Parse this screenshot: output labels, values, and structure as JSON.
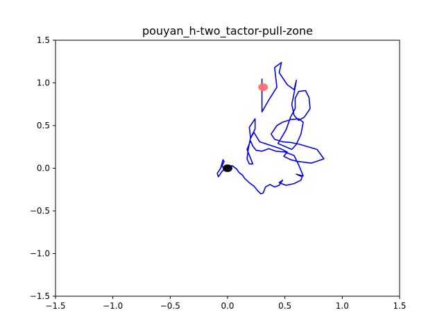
{
  "chart_data": {
    "type": "line",
    "title": "pouyan_h-two_tactor-pull-zone",
    "xlabel": "",
    "ylabel": "",
    "xlim": [
      -1.5,
      1.5
    ],
    "ylim": [
      -1.5,
      1.5
    ],
    "x_ticks": [
      -1.5,
      -1.0,
      -0.5,
      0.0,
      0.5,
      1.0,
      1.5
    ],
    "x_tick_labels": [
      "−1.5",
      "−1.0",
      "−0.5",
      "0.0",
      "0.5",
      "1.0",
      "1.5"
    ],
    "y_ticks": [
      1.5,
      1.0,
      0.5,
      0.0,
      -0.5,
      -1.0,
      -1.5
    ],
    "y_tick_labels": [
      "1.5",
      "1.0",
      "0.5",
      "0.0",
      "−0.5",
      "−1.0",
      "−1.5"
    ],
    "grid": false,
    "series": [
      {
        "color": "#0000ee",
        "points": [
          [
            -0.01,
            0.0
          ],
          [
            -0.05,
            0.02
          ],
          [
            -0.03,
            0.08
          ],
          [
            -0.04,
            0.1
          ],
          [
            -0.06,
            0.0
          ],
          [
            -0.09,
            -0.06
          ],
          [
            -0.08,
            -0.1
          ],
          [
            -0.05,
            -0.04
          ],
          [
            0.0,
            0.02
          ],
          [
            0.04,
            0.03
          ],
          [
            0.08,
            -0.01
          ],
          [
            0.1,
            -0.05
          ],
          [
            0.13,
            -0.08
          ],
          [
            0.15,
            -0.12
          ],
          [
            0.19,
            -0.17
          ],
          [
            0.23,
            -0.21
          ],
          [
            0.26,
            -0.26
          ],
          [
            0.29,
            -0.3
          ],
          [
            0.31,
            -0.29
          ],
          [
            0.33,
            -0.22
          ],
          [
            0.37,
            -0.19
          ],
          [
            0.41,
            -0.22
          ],
          [
            0.45,
            -0.2
          ],
          [
            0.48,
            -0.14
          ],
          [
            0.45,
            -0.17
          ],
          [
            0.51,
            -0.2
          ],
          [
            0.58,
            -0.18
          ],
          [
            0.64,
            -0.14
          ],
          [
            0.65,
            -0.1
          ],
          [
            0.6,
            -0.07
          ],
          [
            0.66,
            -0.09
          ],
          [
            0.62,
            0.04
          ],
          [
            0.58,
            0.15
          ],
          [
            0.5,
            0.19
          ],
          [
            0.42,
            0.2
          ],
          [
            0.36,
            0.23
          ],
          [
            0.3,
            0.2
          ],
          [
            0.25,
            0.21
          ],
          [
            0.22,
            0.26
          ],
          [
            0.2,
            0.32
          ],
          [
            0.17,
            0.22
          ],
          [
            0.22,
            0.05
          ],
          [
            0.19,
            0.05
          ],
          [
            0.17,
            0.11
          ],
          [
            0.18,
            0.22
          ],
          [
            0.2,
            0.36
          ],
          [
            0.19,
            0.48
          ],
          [
            0.24,
            0.58
          ],
          [
            0.24,
            0.46
          ],
          [
            0.2,
            0.35
          ],
          [
            0.23,
            0.42
          ],
          [
            0.28,
            0.31
          ],
          [
            0.37,
            0.27
          ],
          [
            0.46,
            0.23
          ],
          [
            0.52,
            0.19
          ],
          [
            0.49,
            0.14
          ],
          [
            0.55,
            0.1
          ],
          [
            0.61,
            0.08
          ],
          [
            0.73,
            0.06
          ],
          [
            0.84,
            0.11
          ],
          [
            0.78,
            0.22
          ],
          [
            0.63,
            0.28
          ],
          [
            0.56,
            0.3
          ],
          [
            0.48,
            0.31
          ],
          [
            0.41,
            0.34
          ],
          [
            0.38,
            0.4
          ],
          [
            0.43,
            0.5
          ],
          [
            0.48,
            0.54
          ],
          [
            0.55,
            0.57
          ],
          [
            0.62,
            0.58
          ],
          [
            0.66,
            0.54
          ],
          [
            0.64,
            0.4
          ],
          [
            0.6,
            0.28
          ],
          [
            0.56,
            0.22
          ],
          [
            0.44,
            0.29
          ],
          [
            0.51,
            0.45
          ],
          [
            0.55,
            0.6
          ],
          [
            0.59,
            0.7
          ],
          [
            0.59,
            0.82
          ],
          [
            0.62,
            0.9
          ],
          [
            0.68,
            0.91
          ],
          [
            0.71,
            0.83
          ],
          [
            0.72,
            0.7
          ],
          [
            0.67,
            0.6
          ],
          [
            0.62,
            0.56
          ],
          [
            0.58,
            0.62
          ],
          [
            0.56,
            0.75
          ],
          [
            0.58,
            0.88
          ],
          [
            0.6,
            1.03
          ],
          [
            0.58,
            0.92
          ],
          [
            0.52,
            0.98
          ],
          [
            0.45,
            1.12
          ],
          [
            0.47,
            1.24
          ],
          [
            0.41,
            1.18
          ],
          [
            0.43,
            0.95
          ],
          [
            0.36,
            0.8
          ],
          [
            0.3,
            0.66
          ],
          [
            0.3,
            0.9
          ],
          [
            0.3,
            1.05
          ]
        ]
      }
    ],
    "markers": [
      {
        "x": 0.0,
        "y": 0.0,
        "color": "#000000"
      },
      {
        "x": 0.31,
        "y": 0.95,
        "color": "#ff6f6f"
      }
    ]
  }
}
